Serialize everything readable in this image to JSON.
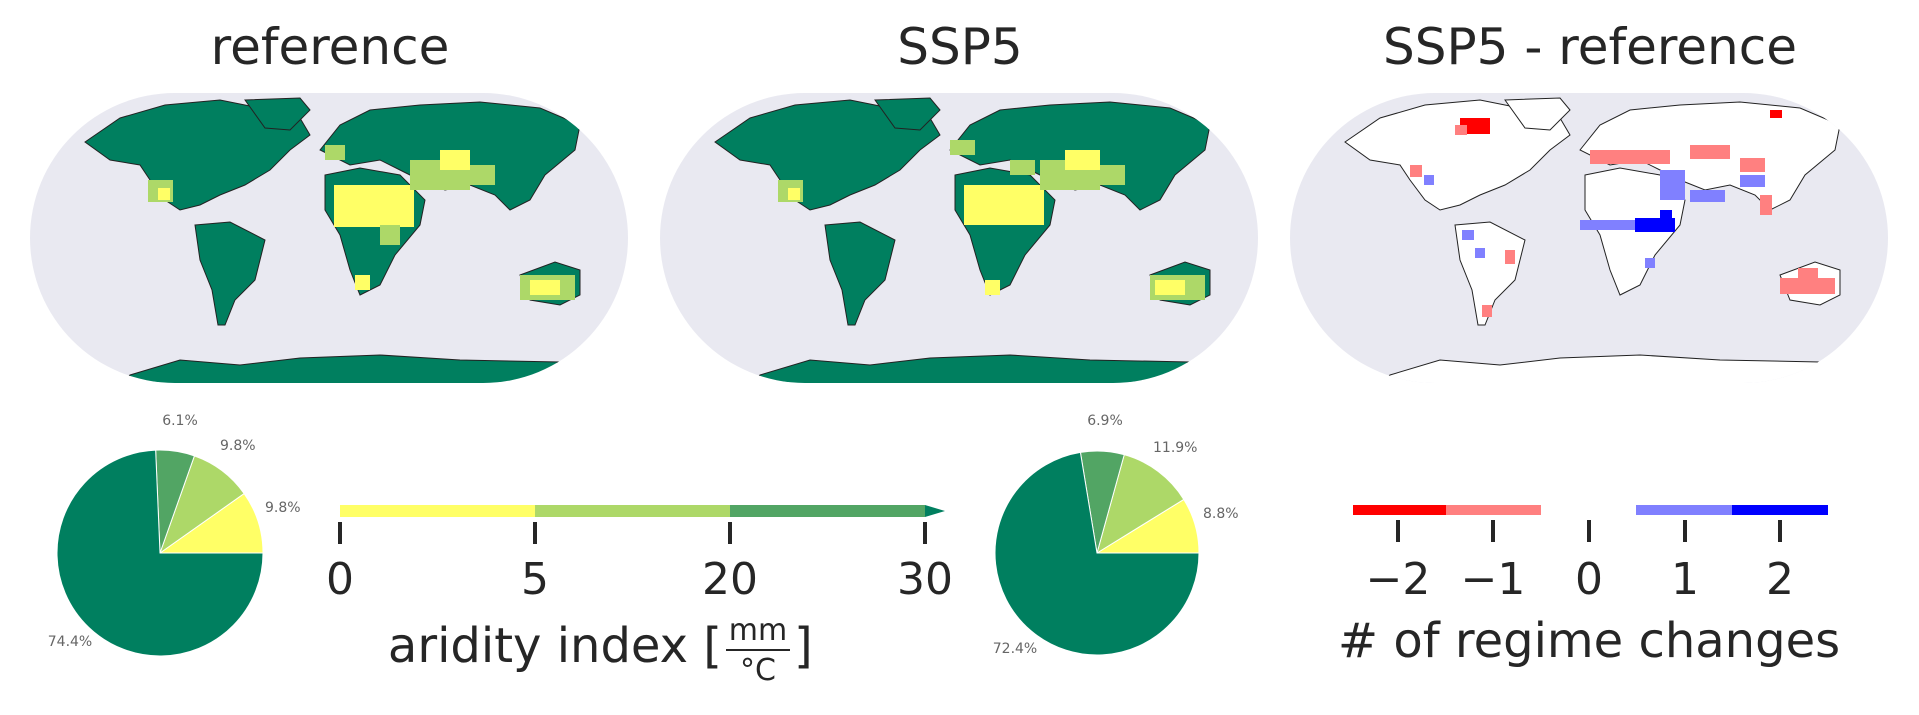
{
  "panels": [
    {
      "title": "reference"
    },
    {
      "title": "SSP5"
    },
    {
      "title": "SSP5 - reference"
    }
  ],
  "colors": {
    "ocean": "#e9e9f1",
    "c1": "#ffff66",
    "c2": "#add868",
    "c3": "#52a564",
    "c4": "#007f5f",
    "neg2": "#ff0000",
    "neg1": "#ff8080",
    "pos1": "#8080ff",
    "pos2": "#0000ff"
  },
  "chart_data": [
    {
      "type": "pie",
      "name": "reference",
      "labels": [
        "9.8%",
        "9.8%",
        "6.1%",
        "74.4%"
      ],
      "values": [
        9.8,
        9.8,
        6.1,
        74.4
      ]
    },
    {
      "type": "pie",
      "name": "SSP5",
      "labels": [
        "8.8%",
        "11.9%",
        "6.9%",
        "72.4%"
      ],
      "values": [
        8.8,
        11.9,
        6.9,
        72.4
      ]
    },
    {
      "type": "colorbar",
      "ticks": [
        "0",
        "5",
        "20",
        "30"
      ],
      "label_text": "aridity index [",
      "unit_num": "mm",
      "unit_den": "°C",
      "label_close": "]"
    },
    {
      "type": "colorbar",
      "ticks": [
        "−2",
        "−1",
        "0",
        "1",
        "2"
      ],
      "label": "# of regime changes"
    }
  ]
}
